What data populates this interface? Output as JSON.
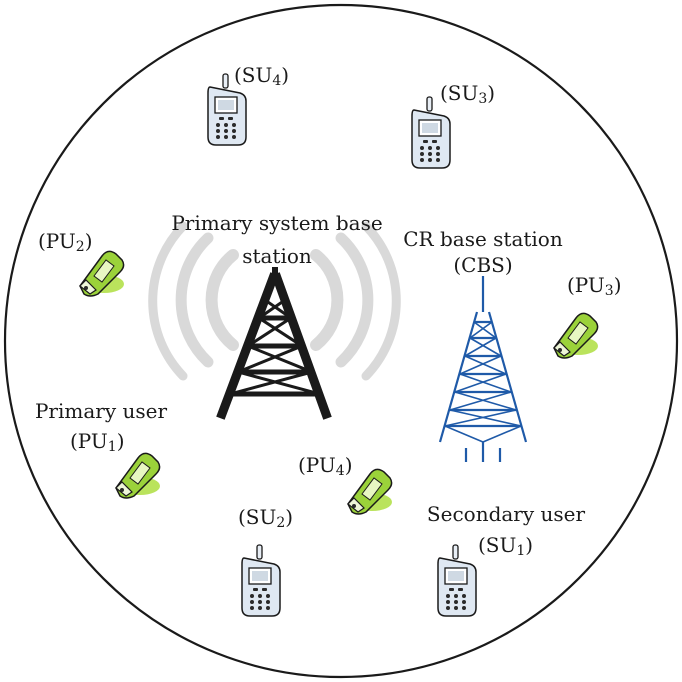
{
  "labels": {
    "primary_bs_line1": "Primary system base",
    "primary_bs_line2": "station",
    "cr_bs_line1": "CR base station",
    "cr_bs_line2": "(CBS)",
    "primary_user": "Primary user",
    "secondary_user": "Secondary user"
  },
  "devices": {
    "su4": {
      "prefix": "(SU",
      "index": "4",
      "suffix": ")"
    },
    "su3": {
      "prefix": "(SU",
      "index": "3",
      "suffix": ")"
    },
    "su2": {
      "prefix": "(SU",
      "index": "2",
      "suffix": ")"
    },
    "su1": {
      "prefix": "(SU",
      "index": "1",
      "suffix": ")"
    },
    "pu1": {
      "prefix": "(PU",
      "index": "1",
      "suffix": ")"
    },
    "pu2": {
      "prefix": "(PU",
      "index": "2",
      "suffix": ")"
    },
    "pu3": {
      "prefix": "(PU",
      "index": "3",
      "suffix": ")"
    },
    "pu4": {
      "prefix": "(PU",
      "index": "4",
      "suffix": ")"
    }
  },
  "colors": {
    "outline": "#1a1a1a",
    "tower_primary": "#1a1a1a",
    "tower_cr": "#1f5aa8",
    "signal_wave": "#d9d9d9",
    "su_phone_body": "#dfe8f2",
    "pu_phone_body": "#9bd23a"
  }
}
